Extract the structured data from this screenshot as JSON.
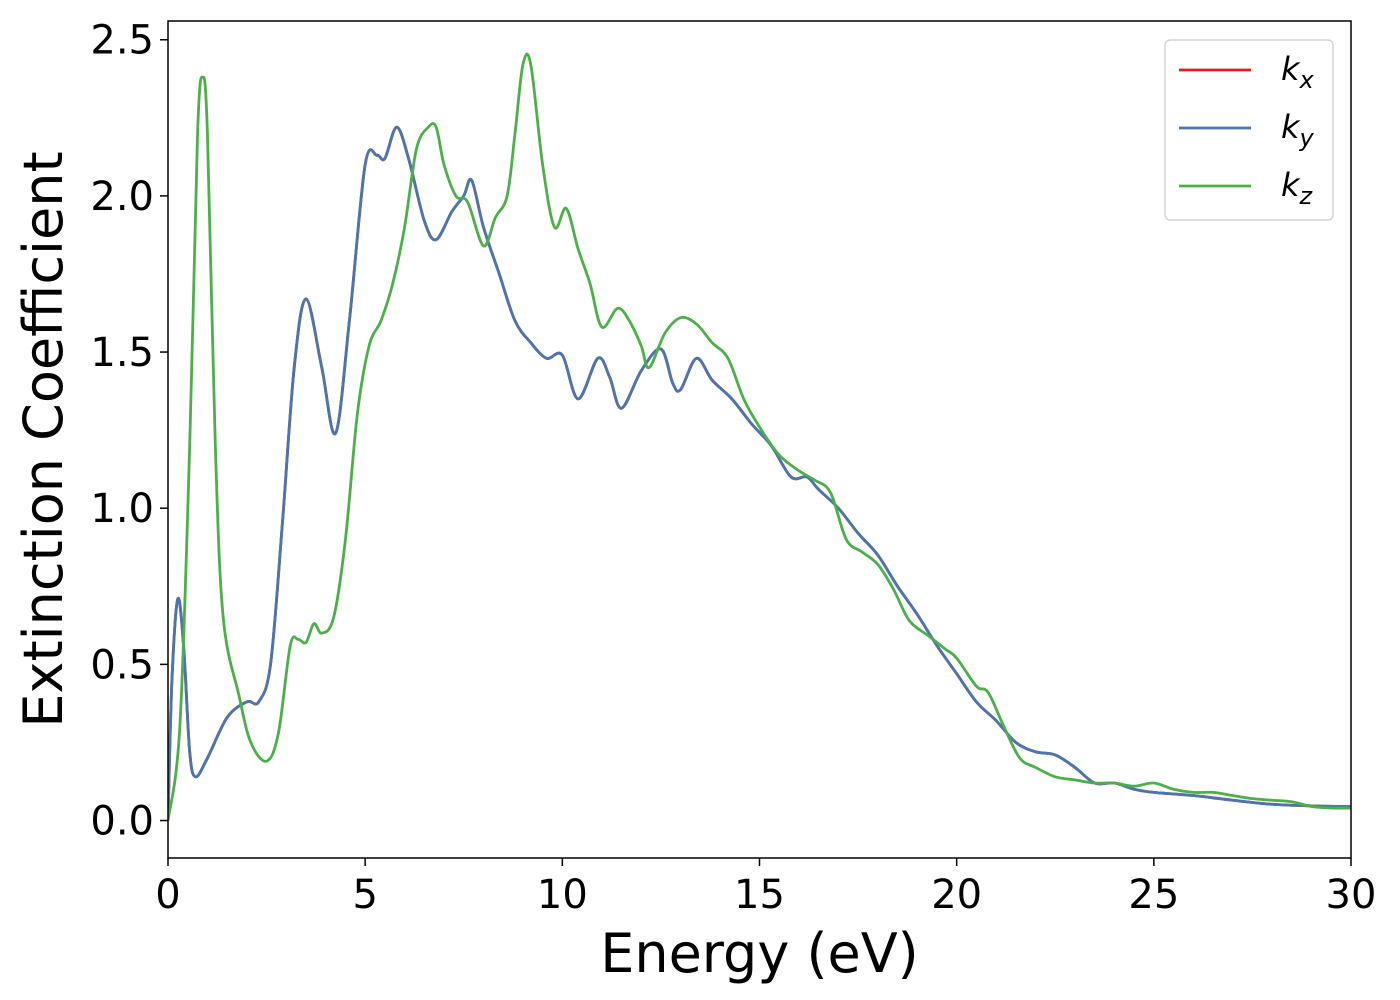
{
  "chart_data": {
    "type": "line",
    "title": "",
    "xlabel": "Energy (eV)",
    "ylabel": "Extinction Coefficient",
    "xlim": [
      0,
      30
    ],
    "ylim": [
      -0.12,
      2.56
    ],
    "xticks": [
      0,
      5,
      10,
      15,
      20,
      25,
      30
    ],
    "xtick_labels": [
      "0",
      "5",
      "10",
      "15",
      "20",
      "25",
      "30"
    ],
    "yticks": [
      0.0,
      0.5,
      1.0,
      1.5,
      2.0,
      2.5
    ],
    "ytick_labels": [
      "0.0",
      "0.5",
      "1.0",
      "1.5",
      "2.0",
      "2.5"
    ],
    "grid": false,
    "legend_position": "top-right",
    "series": [
      {
        "name": "k",
        "subscript": "x",
        "color": "#e41a1c",
        "points": [
          [
            0,
            0.0
          ],
          [
            0.1,
            0.45
          ],
          [
            0.25,
            0.71
          ],
          [
            0.4,
            0.55
          ],
          [
            0.55,
            0.22
          ],
          [
            0.7,
            0.14
          ],
          [
            1.0,
            0.2
          ],
          [
            1.5,
            0.33
          ],
          [
            2.0,
            0.38
          ],
          [
            2.3,
            0.38
          ],
          [
            2.6,
            0.5
          ],
          [
            2.9,
            0.95
          ],
          [
            3.2,
            1.45
          ],
          [
            3.5,
            1.67
          ],
          [
            3.9,
            1.45
          ],
          [
            4.25,
            1.24
          ],
          [
            4.6,
            1.6
          ],
          [
            5.0,
            2.1
          ],
          [
            5.3,
            2.13
          ],
          [
            5.5,
            2.12
          ],
          [
            5.8,
            2.22
          ],
          [
            6.1,
            2.12
          ],
          [
            6.5,
            1.92
          ],
          [
            6.8,
            1.86
          ],
          [
            7.2,
            1.95
          ],
          [
            7.5,
            2.0
          ],
          [
            7.7,
            2.05
          ],
          [
            8.0,
            1.9
          ],
          [
            8.4,
            1.75
          ],
          [
            8.8,
            1.6
          ],
          [
            9.2,
            1.53
          ],
          [
            9.6,
            1.48
          ],
          [
            10.0,
            1.49
          ],
          [
            10.4,
            1.35
          ],
          [
            10.9,
            1.48
          ],
          [
            11.2,
            1.42
          ],
          [
            11.5,
            1.32
          ],
          [
            12.0,
            1.44
          ],
          [
            12.5,
            1.51
          ],
          [
            12.8,
            1.4
          ],
          [
            13.0,
            1.38
          ],
          [
            13.4,
            1.48
          ],
          [
            13.8,
            1.41
          ],
          [
            14.3,
            1.35
          ],
          [
            14.8,
            1.27
          ],
          [
            15.3,
            1.2
          ],
          [
            15.8,
            1.1
          ],
          [
            16.2,
            1.1
          ],
          [
            16.5,
            1.06
          ],
          [
            17.0,
            1.0
          ],
          [
            17.5,
            0.92
          ],
          [
            18.0,
            0.85
          ],
          [
            18.5,
            0.75
          ],
          [
            19.0,
            0.66
          ],
          [
            19.5,
            0.56
          ],
          [
            20.0,
            0.47
          ],
          [
            20.5,
            0.38
          ],
          [
            21.0,
            0.32
          ],
          [
            21.5,
            0.25
          ],
          [
            22.0,
            0.22
          ],
          [
            22.5,
            0.21
          ],
          [
            23.0,
            0.17
          ],
          [
            23.5,
            0.12
          ],
          [
            24.0,
            0.12
          ],
          [
            24.5,
            0.1
          ],
          [
            25.0,
            0.09
          ],
          [
            26.0,
            0.08
          ],
          [
            27.0,
            0.065
          ],
          [
            28.0,
            0.052
          ],
          [
            29.0,
            0.047
          ],
          [
            30.0,
            0.045
          ]
        ]
      },
      {
        "name": "k",
        "subscript": "y",
        "color": "#4a76b0",
        "points": [
          [
            0,
            0.0
          ],
          [
            0.1,
            0.45
          ],
          [
            0.25,
            0.71
          ],
          [
            0.4,
            0.55
          ],
          [
            0.55,
            0.22
          ],
          [
            0.7,
            0.14
          ],
          [
            1.0,
            0.2
          ],
          [
            1.5,
            0.33
          ],
          [
            2.0,
            0.38
          ],
          [
            2.3,
            0.38
          ],
          [
            2.6,
            0.5
          ],
          [
            2.9,
            0.95
          ],
          [
            3.2,
            1.45
          ],
          [
            3.5,
            1.67
          ],
          [
            3.9,
            1.45
          ],
          [
            4.25,
            1.24
          ],
          [
            4.6,
            1.6
          ],
          [
            5.0,
            2.1
          ],
          [
            5.3,
            2.13
          ],
          [
            5.5,
            2.12
          ],
          [
            5.8,
            2.22
          ],
          [
            6.1,
            2.12
          ],
          [
            6.5,
            1.92
          ],
          [
            6.8,
            1.86
          ],
          [
            7.2,
            1.95
          ],
          [
            7.5,
            2.0
          ],
          [
            7.7,
            2.05
          ],
          [
            8.0,
            1.9
          ],
          [
            8.4,
            1.75
          ],
          [
            8.8,
            1.6
          ],
          [
            9.2,
            1.53
          ],
          [
            9.6,
            1.48
          ],
          [
            10.0,
            1.49
          ],
          [
            10.4,
            1.35
          ],
          [
            10.9,
            1.48
          ],
          [
            11.2,
            1.42
          ],
          [
            11.5,
            1.32
          ],
          [
            12.0,
            1.44
          ],
          [
            12.5,
            1.51
          ],
          [
            12.8,
            1.4
          ],
          [
            13.0,
            1.38
          ],
          [
            13.4,
            1.48
          ],
          [
            13.8,
            1.41
          ],
          [
            14.3,
            1.35
          ],
          [
            14.8,
            1.27
          ],
          [
            15.3,
            1.2
          ],
          [
            15.8,
            1.1
          ],
          [
            16.2,
            1.1
          ],
          [
            16.5,
            1.06
          ],
          [
            17.0,
            1.0
          ],
          [
            17.5,
            0.92
          ],
          [
            18.0,
            0.85
          ],
          [
            18.5,
            0.75
          ],
          [
            19.0,
            0.66
          ],
          [
            19.5,
            0.56
          ],
          [
            20.0,
            0.47
          ],
          [
            20.5,
            0.38
          ],
          [
            21.0,
            0.32
          ],
          [
            21.5,
            0.25
          ],
          [
            22.0,
            0.22
          ],
          [
            22.5,
            0.21
          ],
          [
            23.0,
            0.17
          ],
          [
            23.5,
            0.12
          ],
          [
            24.0,
            0.12
          ],
          [
            24.5,
            0.1
          ],
          [
            25.0,
            0.09
          ],
          [
            26.0,
            0.08
          ],
          [
            27.0,
            0.065
          ],
          [
            28.0,
            0.052
          ],
          [
            29.0,
            0.047
          ],
          [
            30.0,
            0.045
          ]
        ]
      },
      {
        "name": "k",
        "subscript": "z",
        "color": "#4daf4a",
        "points": [
          [
            0,
            0.0
          ],
          [
            0.3,
            0.3
          ],
          [
            0.55,
            1.2
          ],
          [
            0.75,
            2.2
          ],
          [
            0.88,
            2.38
          ],
          [
            1.0,
            2.2
          ],
          [
            1.2,
            1.2
          ],
          [
            1.4,
            0.65
          ],
          [
            1.8,
            0.4
          ],
          [
            2.1,
            0.25
          ],
          [
            2.5,
            0.19
          ],
          [
            2.8,
            0.28
          ],
          [
            3.1,
            0.56
          ],
          [
            3.3,
            0.58
          ],
          [
            3.5,
            0.57
          ],
          [
            3.7,
            0.63
          ],
          [
            3.9,
            0.6
          ],
          [
            4.2,
            0.65
          ],
          [
            4.5,
            0.9
          ],
          [
            4.8,
            1.3
          ],
          [
            5.1,
            1.52
          ],
          [
            5.4,
            1.6
          ],
          [
            5.7,
            1.72
          ],
          [
            6.0,
            1.9
          ],
          [
            6.3,
            2.15
          ],
          [
            6.6,
            2.22
          ],
          [
            6.8,
            2.22
          ],
          [
            7.0,
            2.1
          ],
          [
            7.3,
            2.0
          ],
          [
            7.6,
            1.98
          ],
          [
            8.0,
            1.84
          ],
          [
            8.3,
            1.93
          ],
          [
            8.6,
            2.0
          ],
          [
            8.8,
            2.2
          ],
          [
            9.0,
            2.42
          ],
          [
            9.2,
            2.42
          ],
          [
            9.5,
            2.1
          ],
          [
            9.8,
            1.9
          ],
          [
            10.1,
            1.96
          ],
          [
            10.4,
            1.83
          ],
          [
            10.7,
            1.72
          ],
          [
            11.0,
            1.58
          ],
          [
            11.4,
            1.64
          ],
          [
            11.7,
            1.6
          ],
          [
            12.0,
            1.52
          ],
          [
            12.2,
            1.45
          ],
          [
            12.6,
            1.56
          ],
          [
            13.0,
            1.61
          ],
          [
            13.4,
            1.59
          ],
          [
            13.8,
            1.53
          ],
          [
            14.2,
            1.48
          ],
          [
            14.6,
            1.35
          ],
          [
            15.0,
            1.26
          ],
          [
            15.5,
            1.17
          ],
          [
            16.0,
            1.12
          ],
          [
            16.4,
            1.09
          ],
          [
            16.8,
            1.05
          ],
          [
            17.2,
            0.9
          ],
          [
            17.6,
            0.86
          ],
          [
            18.0,
            0.82
          ],
          [
            18.4,
            0.74
          ],
          [
            18.8,
            0.64
          ],
          [
            19.3,
            0.59
          ],
          [
            19.7,
            0.55
          ],
          [
            20.0,
            0.52
          ],
          [
            20.5,
            0.43
          ],
          [
            20.8,
            0.41
          ],
          [
            21.2,
            0.3
          ],
          [
            21.6,
            0.2
          ],
          [
            22.0,
            0.17
          ],
          [
            22.5,
            0.14
          ],
          [
            23.0,
            0.13
          ],
          [
            23.5,
            0.12
          ],
          [
            24.0,
            0.12
          ],
          [
            24.5,
            0.11
          ],
          [
            25.0,
            0.12
          ],
          [
            25.5,
            0.1
          ],
          [
            26.0,
            0.09
          ],
          [
            26.5,
            0.09
          ],
          [
            27.0,
            0.08
          ],
          [
            27.5,
            0.07
          ],
          [
            28.0,
            0.065
          ],
          [
            28.5,
            0.06
          ],
          [
            29.0,
            0.045
          ],
          [
            29.5,
            0.04
          ],
          [
            30.0,
            0.04
          ]
        ]
      }
    ]
  }
}
